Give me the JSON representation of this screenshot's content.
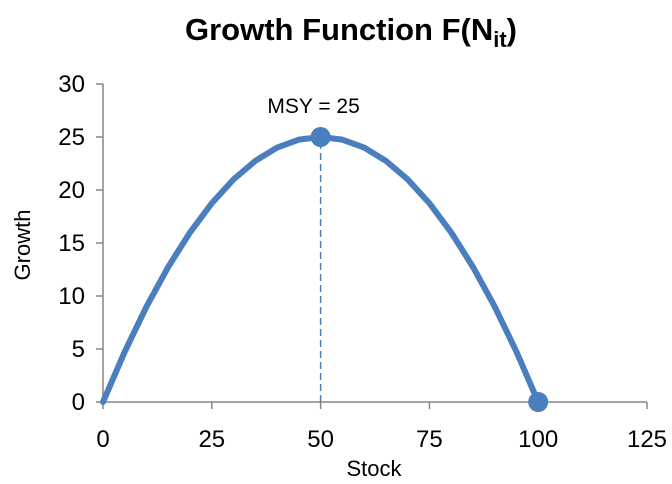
{
  "chart_data": {
    "type": "line",
    "title": {
      "main": "Growth Function F(N",
      "subscript": "it",
      "close": ")"
    },
    "xlabel": "Stock",
    "ylabel": "Growth",
    "xlim": [
      0,
      125
    ],
    "ylim": [
      0,
      30
    ],
    "x_ticks": [
      0,
      25,
      50,
      75,
      100,
      125
    ],
    "y_ticks": [
      0,
      5,
      10,
      15,
      20,
      25,
      30
    ],
    "grid": false,
    "series": [
      {
        "color": "#4a7ebf",
        "x": [
          0,
          5,
          10,
          15,
          20,
          25,
          30,
          35,
          40,
          45,
          50,
          55,
          60,
          65,
          70,
          75,
          80,
          85,
          90,
          95,
          100
        ],
        "y": [
          0,
          4.75,
          9,
          12.75,
          16,
          18.75,
          21,
          22.75,
          24,
          24.75,
          25,
          24.75,
          24,
          22.75,
          21,
          18.75,
          16,
          12.75,
          9,
          4.75,
          0
        ]
      }
    ],
    "markers": [
      {
        "x": 50,
        "y": 25
      },
      {
        "x": 100,
        "y": 0
      }
    ],
    "reference_line": {
      "x": 50,
      "y_from": 0,
      "y_to": 25,
      "style": "dashed"
    },
    "annotation": {
      "text": "MSY = 25",
      "x": 50,
      "y": 25
    }
  }
}
